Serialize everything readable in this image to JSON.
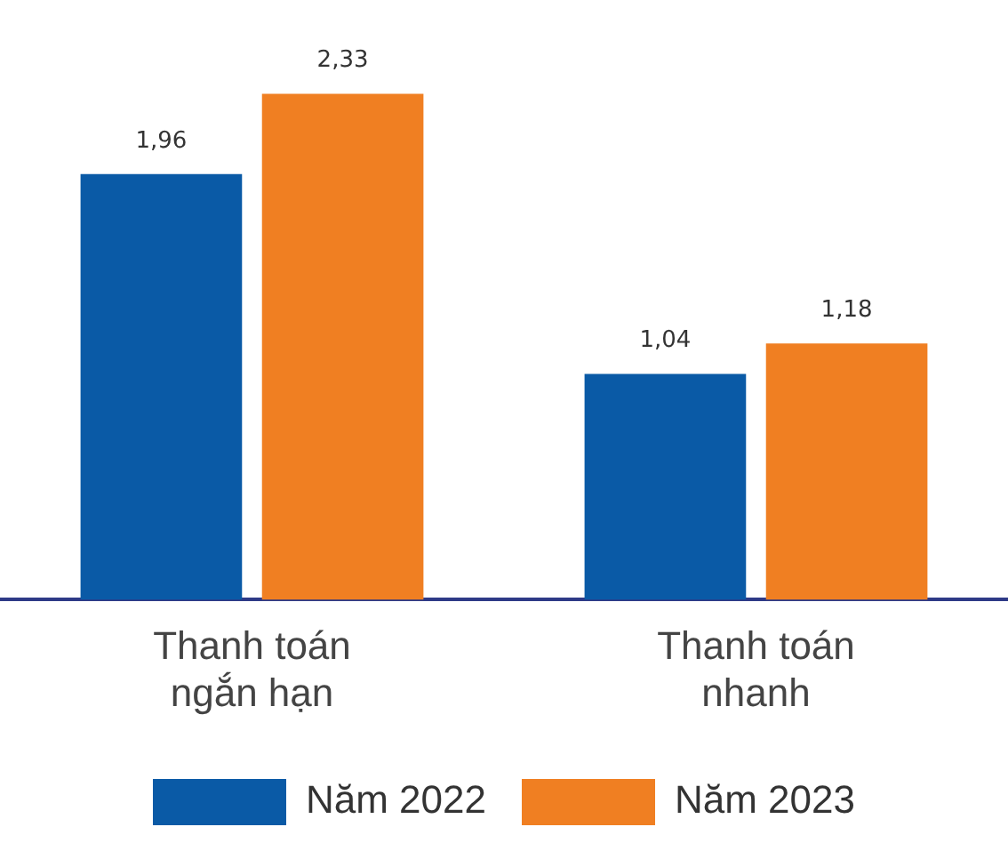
{
  "chart_data": {
    "type": "bar",
    "categories": [
      "Thanh toán ngắn hạn",
      "Thanh toán nhanh"
    ],
    "series": [
      {
        "name": "Năm 2022",
        "color": "#0a5aa6",
        "values": [
          1.96,
          1.04
        ],
        "value_labels": [
          "1,96",
          "1,04"
        ]
      },
      {
        "name": "Năm 2023",
        "color": "#f07f22",
        "values": [
          2.33,
          1.18
        ],
        "value_labels": [
          "2,33",
          "1,18"
        ]
      }
    ],
    "tick_labels": "x",
    "grid": false,
    "legend": "bottom"
  }
}
